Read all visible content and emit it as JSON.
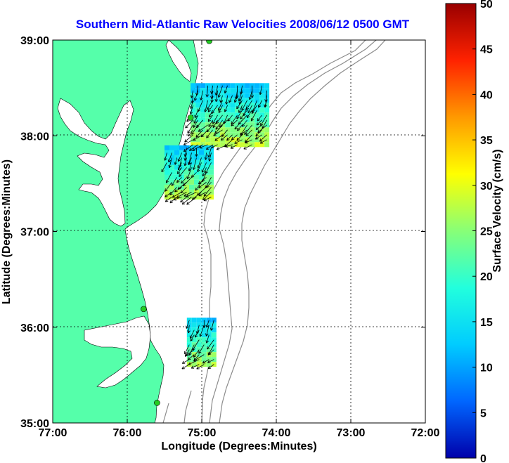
{
  "title": "Southern Mid-Atlantic Raw Velocities 2008/06/12 0500 GMT",
  "title_color": "#0000ff",
  "x_axis": {
    "label": "Longitude (Degrees:Minutes)",
    "ticks": [
      "77:00",
      "76:00",
      "75:00",
      "74:00",
      "73:00",
      "72:00"
    ]
  },
  "y_axis": {
    "label": "Latitude (Degrees:Minutes)",
    "ticks": [
      "39:00",
      "38:00",
      "37:00",
      "36:00",
      "35:00"
    ]
  },
  "colorbar": {
    "label": "Surface Velocity (cm/s)",
    "ticks": [
      "0",
      "5",
      "10",
      "15",
      "20",
      "25",
      "30",
      "35",
      "40",
      "45",
      "50"
    ],
    "range": [
      0,
      50
    ]
  },
  "colors": {
    "land": "#55ffaa",
    "water": "#ffffff",
    "bathymetry": "#8c8c8c",
    "grid": "#000000",
    "station": "#22cc22"
  },
  "stations_lonlat": [
    [
      -74.9,
      38.99
    ],
    [
      -75.15,
      38.19
    ],
    [
      -75.78,
      36.19
    ],
    [
      -75.6,
      35.21
    ]
  ],
  "velocity_patches": [
    {
      "lon": [
        -75.15,
        -74.15
      ],
      "lat": [
        37.92,
        38.55
      ]
    },
    {
      "lon": [
        -75.5,
        -74.9
      ],
      "lat": [
        37.35,
        37.9
      ]
    },
    {
      "lon": [
        -75.2,
        -74.85
      ],
      "lat": [
        35.6,
        36.1
      ]
    }
  ]
}
